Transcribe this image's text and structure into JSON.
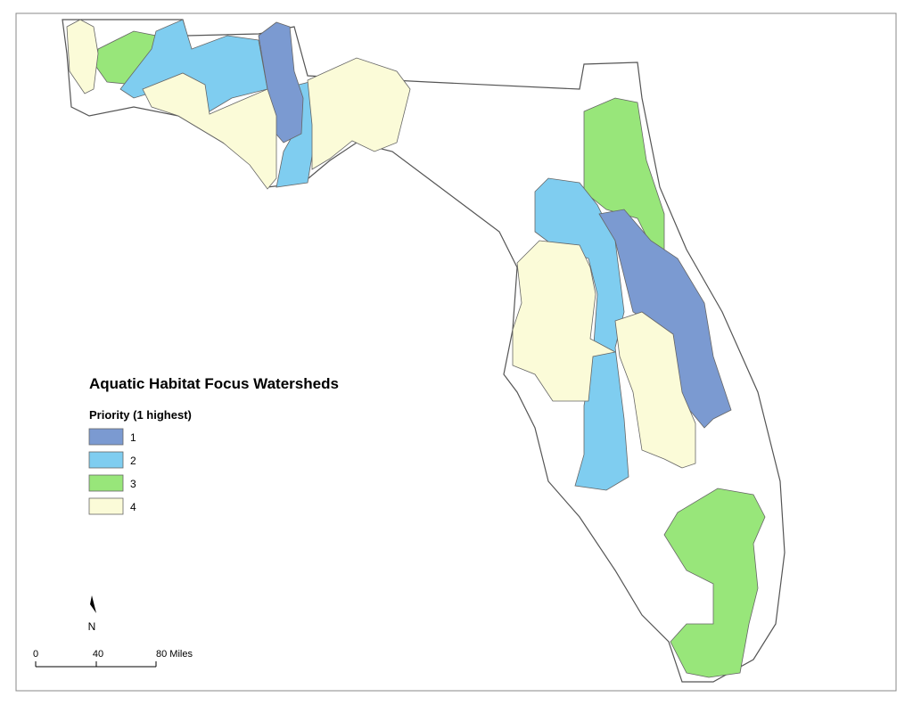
{
  "title": "Aquatic Habitat Focus Watersheds",
  "legend": {
    "title": "Priority (1 highest)",
    "items": [
      {
        "label": "1",
        "color": "#7b9ad1"
      },
      {
        "label": "2",
        "color": "#7fcdf0"
      },
      {
        "label": "3",
        "color": "#98e67a"
      },
      {
        "label": "4",
        "color": "#fbfbd8"
      }
    ]
  },
  "north_arrow": "N",
  "scale_bar": {
    "labels": [
      "0",
      "40",
      "80 Miles"
    ]
  }
}
